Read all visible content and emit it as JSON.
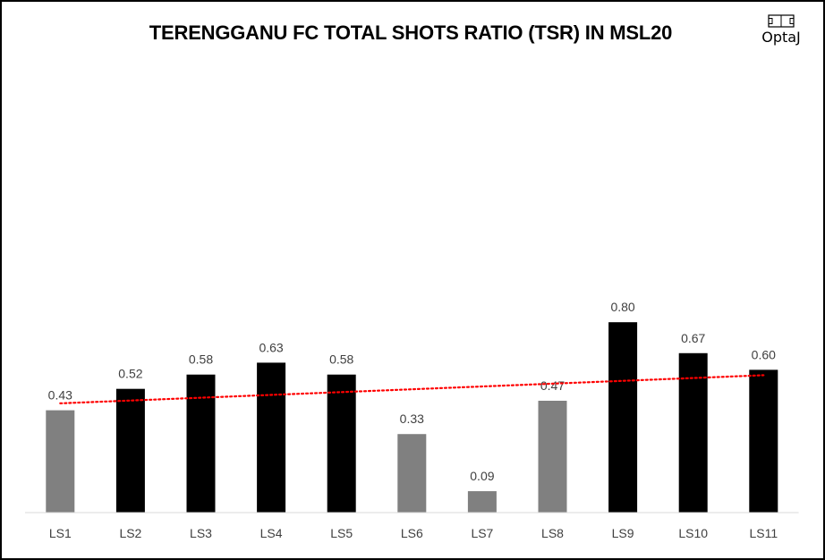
{
  "title": "TERENGGANU FC TOTAL SHOTS RATIO (TSR) IN MSL20",
  "logo": {
    "text": "OptaJ",
    "icon": "pitch-icon"
  },
  "chart_data": {
    "type": "bar",
    "title": "TERENGGANU FC TOTAL SHOTS RATIO (TSR) IN MSL20",
    "categories": [
      "LS1",
      "LS2",
      "LS3",
      "LS4",
      "LS5",
      "LS6",
      "LS7",
      "LS8",
      "LS9",
      "LS10",
      "LS11"
    ],
    "values": [
      0.43,
      0.52,
      0.58,
      0.63,
      0.58,
      0.33,
      0.09,
      0.47,
      0.8,
      0.67,
      0.6
    ],
    "value_labels": [
      "0.43",
      "0.52",
      "0.58",
      "0.63",
      "0.58",
      "0.33",
      "0.09",
      "0.47",
      "0.80",
      "0.67",
      "0.60"
    ],
    "bar_colors": [
      "#808080",
      "#000000",
      "#000000",
      "#000000",
      "#000000",
      "#808080",
      "#808080",
      "#808080",
      "#000000",
      "#000000",
      "#000000"
    ],
    "trendline": {
      "type": "linear",
      "color": "#ff0000",
      "style": "dotted"
    },
    "ylim": [
      0,
      0.9
    ],
    "xlabel": "",
    "ylabel": "",
    "grid": false,
    "legend": "none"
  }
}
